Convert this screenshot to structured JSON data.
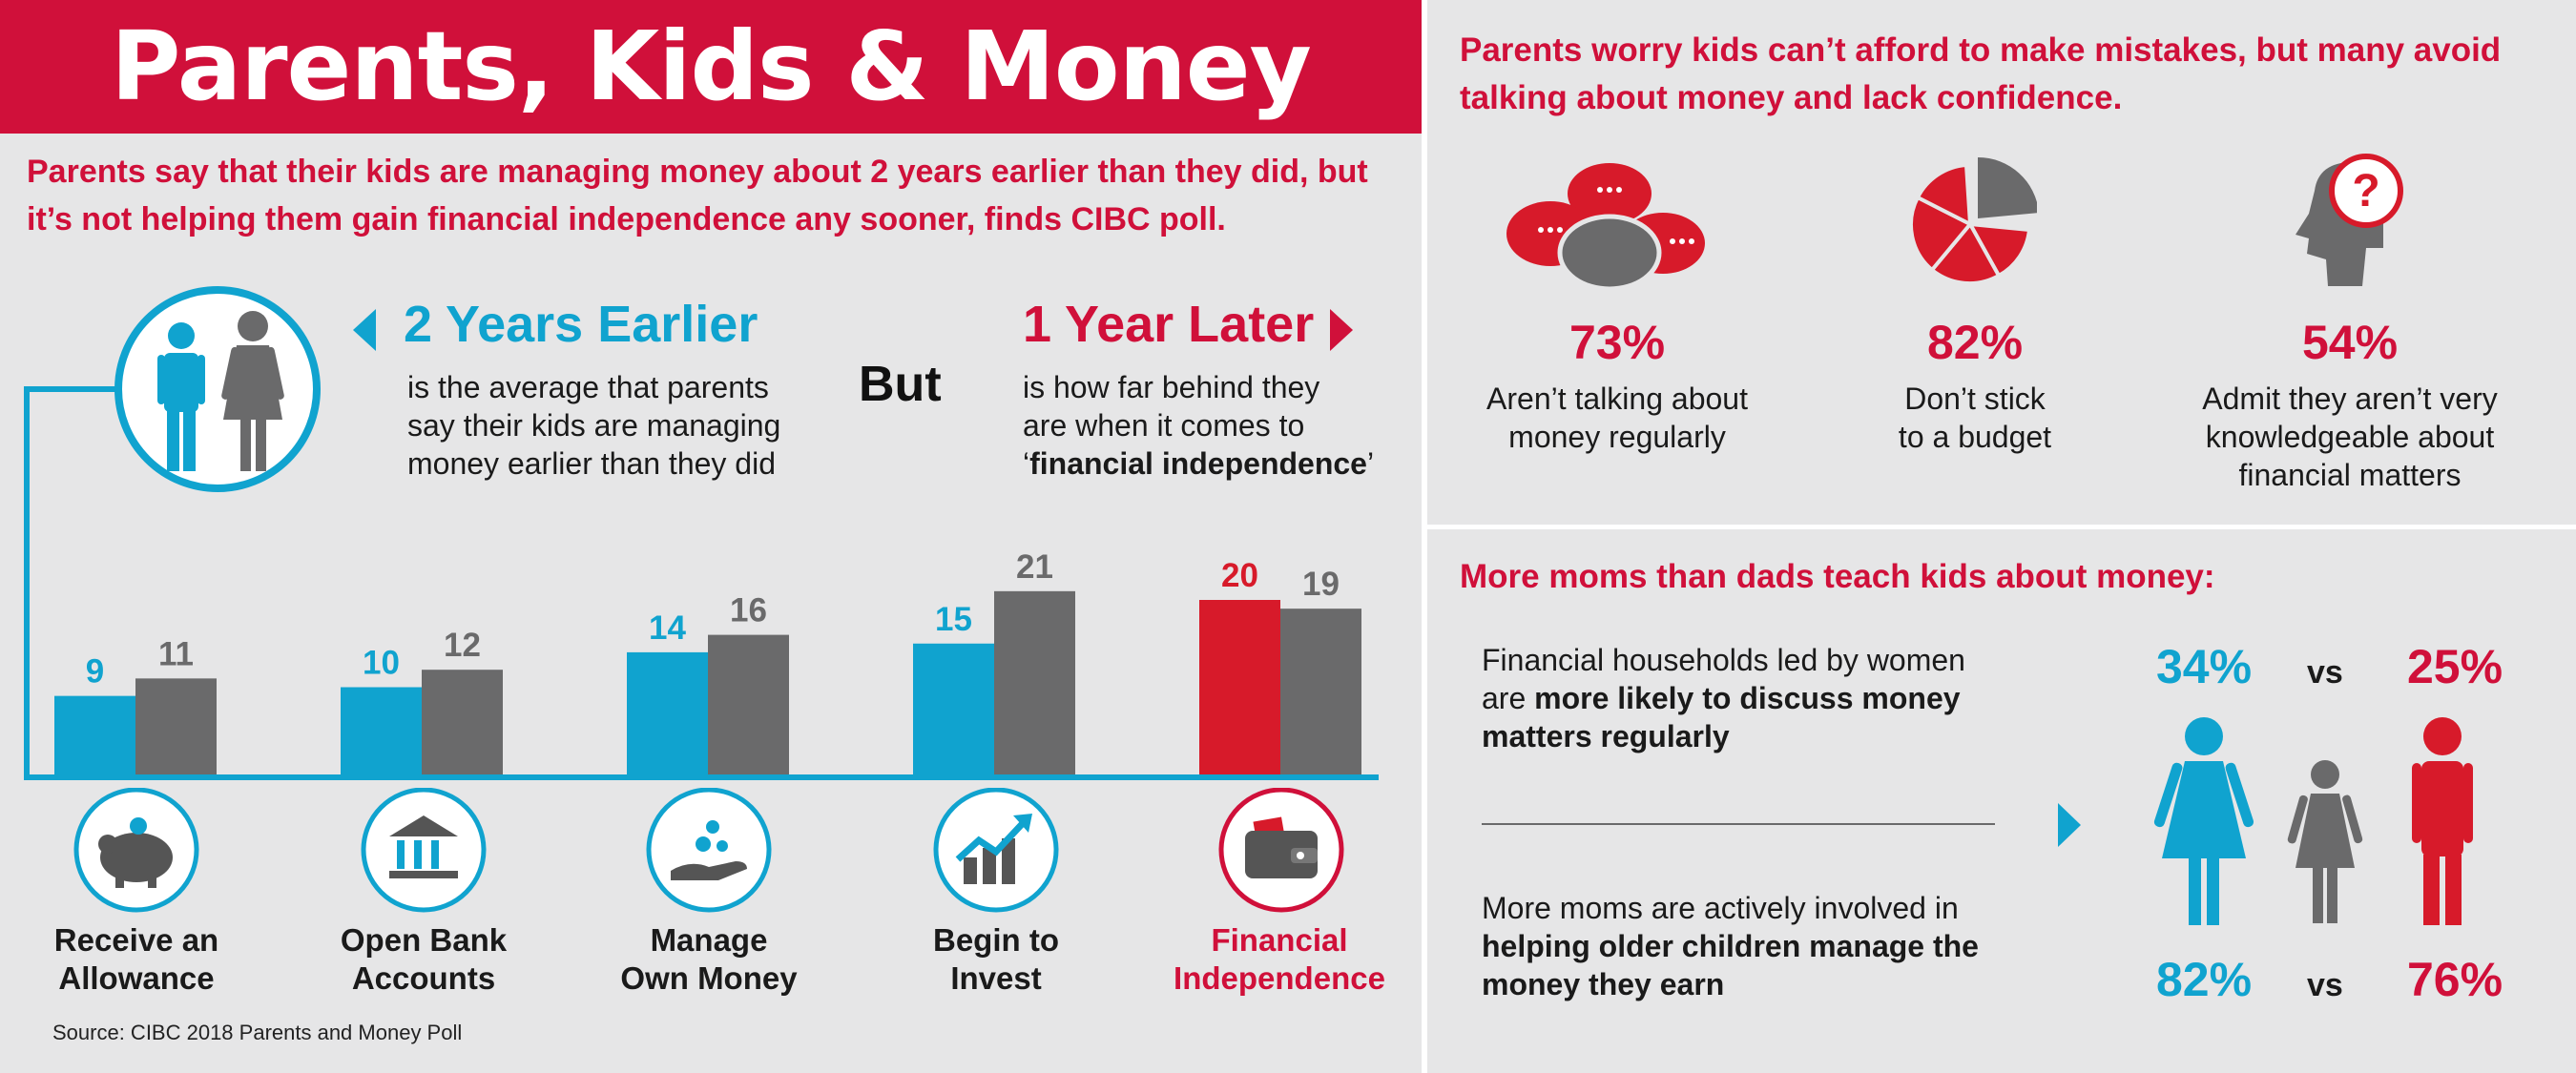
{
  "header": {
    "title": "Parents, Kids & Money",
    "subtitle": "Parents say that their kids are managing money about 2 years earlier than they did, but it’s not helping them gain financial independence any sooner, finds CIBC poll."
  },
  "earlier": {
    "headline": "2 Years Earlier",
    "text": [
      "is the average that parents",
      "say their kids are managing",
      "money earlier than they did"
    ]
  },
  "but": "But",
  "later": {
    "headline": "1 Year Later",
    "line1": "is how far behind they",
    "line2": "are when it comes to",
    "open_quote": "‘",
    "bold": "financial independence",
    "close_quote": "’"
  },
  "chart_data": {
    "type": "bar",
    "categories": [
      "Receive an Allowance",
      "Open Bank Accounts",
      "Manage Own Money",
      "Begin to Invest",
      "Financial Independence"
    ],
    "category_lines": [
      [
        "Receive an",
        "Allowance"
      ],
      [
        "Open Bank",
        "Accounts"
      ],
      [
        "Manage",
        "Own Money"
      ],
      [
        "Begin to",
        "Invest"
      ],
      [
        "Financial",
        "Independence"
      ]
    ],
    "series": [
      {
        "values": [
          9,
          10,
          14,
          15,
          20
        ]
      },
      {
        "values": [
          11,
          12,
          16,
          21,
          19
        ]
      }
    ],
    "colors": {
      "kids": "#10a3cf",
      "parents": "#6a6a6b",
      "highlight": "#d71a2a"
    },
    "ylim": [
      0,
      21
    ]
  },
  "source": "Source: CIBC 2018 Parents and Money Poll",
  "right_top": {
    "headline": [
      "Parents worry kids can’t afford to make mistakes, but many avoid",
      "talking about money and lack confidence."
    ],
    "stats": [
      {
        "pct": "73%",
        "label": [
          "Aren’t talking about",
          "money regularly"
        ],
        "icon": "speech-bubbles-icon"
      },
      {
        "pct": "82%",
        "label": [
          "Don’t stick",
          "to a budget"
        ],
        "icon": "pie-chart-icon"
      },
      {
        "pct": "54%",
        "label": [
          "Admit they aren’t very",
          "knowledgeable about",
          "financial matters"
        ],
        "icon": "question-head-icon"
      }
    ]
  },
  "right_bottom": {
    "headline": "More moms than dads teach kids about money:",
    "item1": {
      "plain": [
        "Financial households led by women",
        "are "
      ],
      "bold": [
        "more likely to discuss money",
        "matters regularly"
      ]
    },
    "item2": {
      "plain": [
        "More moms are actively involved in"
      ],
      "bold": [
        "helping older children manage the",
        "money they earn"
      ]
    },
    "women_pct_1": "34%",
    "men_pct_1": "25%",
    "women_pct_2": "82%",
    "men_pct_2": "76%",
    "vs": "vs"
  }
}
